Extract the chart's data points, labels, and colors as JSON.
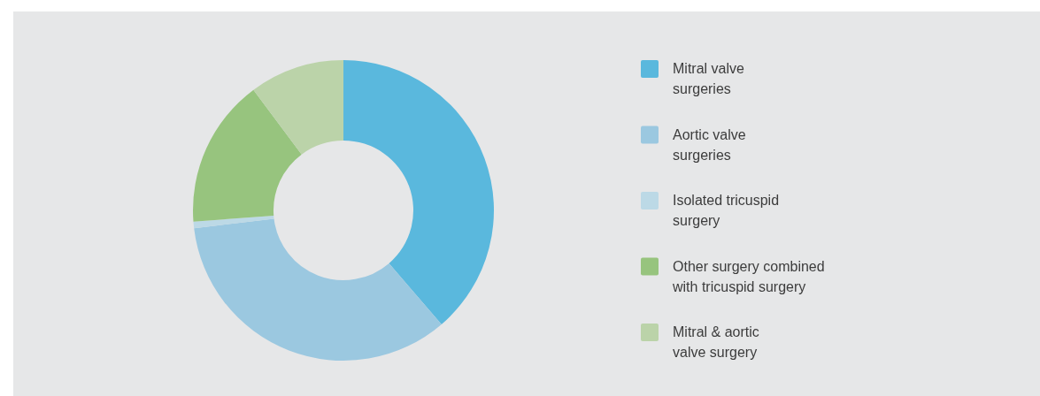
{
  "chart_data": {
    "type": "donut",
    "categories": [
      "Mitral valve surgeries",
      "Aortic valve surgeries",
      "Isolated tricuspid surgery",
      "Other surgery combined with tricuspid surgery",
      "Mitral & aortic valve surgery"
    ],
    "values": [
      38.7,
      34.4,
      0.7,
      16.0,
      10.2
    ],
    "colors": [
      "#5ab8dd",
      "#9bc8e0",
      "#bcd9e6",
      "#97c47e",
      "#bbd3a9"
    ],
    "legend": "right"
  }
}
